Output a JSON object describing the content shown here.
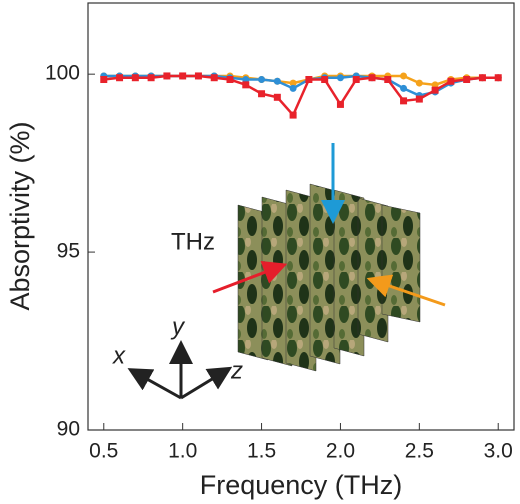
{
  "chart_data": {
    "type": "line",
    "x_label": "Frequency (THz)",
    "y_label": "Absorptivity (%)",
    "annotations": [
      "THz",
      "x",
      "y",
      "z"
    ],
    "x": [
      0.5,
      0.6,
      0.7,
      0.8,
      0.9,
      1.0,
      1.1,
      1.2,
      1.3,
      1.4,
      1.5,
      1.6,
      1.7,
      1.8,
      1.9,
      2.0,
      2.1,
      2.2,
      2.3,
      2.4,
      2.5,
      2.6,
      2.7,
      2.8,
      2.9,
      3.0
    ],
    "series": [
      {
        "color": "#f5a21b",
        "marker": "circle",
        "values": [
          99.95,
          99.95,
          99.95,
          99.95,
          99.95,
          99.95,
          99.95,
          99.95,
          99.95,
          99.9,
          99.85,
          99.8,
          99.75,
          99.85,
          99.95,
          99.95,
          99.95,
          99.95,
          99.95,
          99.95,
          99.75,
          99.7,
          99.85,
          99.9,
          99.9,
          99.9
        ]
      },
      {
        "color": "#2e8fd6",
        "marker": "circle",
        "values": [
          99.95,
          99.95,
          99.95,
          99.95,
          99.95,
          99.95,
          99.95,
          99.95,
          99.9,
          99.85,
          99.85,
          99.8,
          99.6,
          99.85,
          99.9,
          99.9,
          99.95,
          99.9,
          99.85,
          99.6,
          99.4,
          99.5,
          99.75,
          99.85,
          99.9,
          99.9
        ]
      },
      {
        "color": "#e8222b",
        "marker": "square",
        "values": [
          99.85,
          99.9,
          99.9,
          99.9,
          99.95,
          99.95,
          99.95,
          99.9,
          99.85,
          99.7,
          99.45,
          99.35,
          98.85,
          99.85,
          99.85,
          99.15,
          99.85,
          99.9,
          99.85,
          99.25,
          99.3,
          99.55,
          99.8,
          99.85,
          99.9,
          99.9
        ]
      }
    ],
    "xlim": [
      0.4,
      3.1
    ],
    "ylim": [
      90,
      102
    ],
    "xticks": [
      0.5,
      {
        "value": 1,
        "label": "1.0"
      },
      1.5,
      {
        "value": 2,
        "label": "2.0"
      },
      2.5,
      {
        "value": 3,
        "label": "3.0"
      }
    ],
    "yticks": [
      90,
      95,
      100
    ]
  }
}
